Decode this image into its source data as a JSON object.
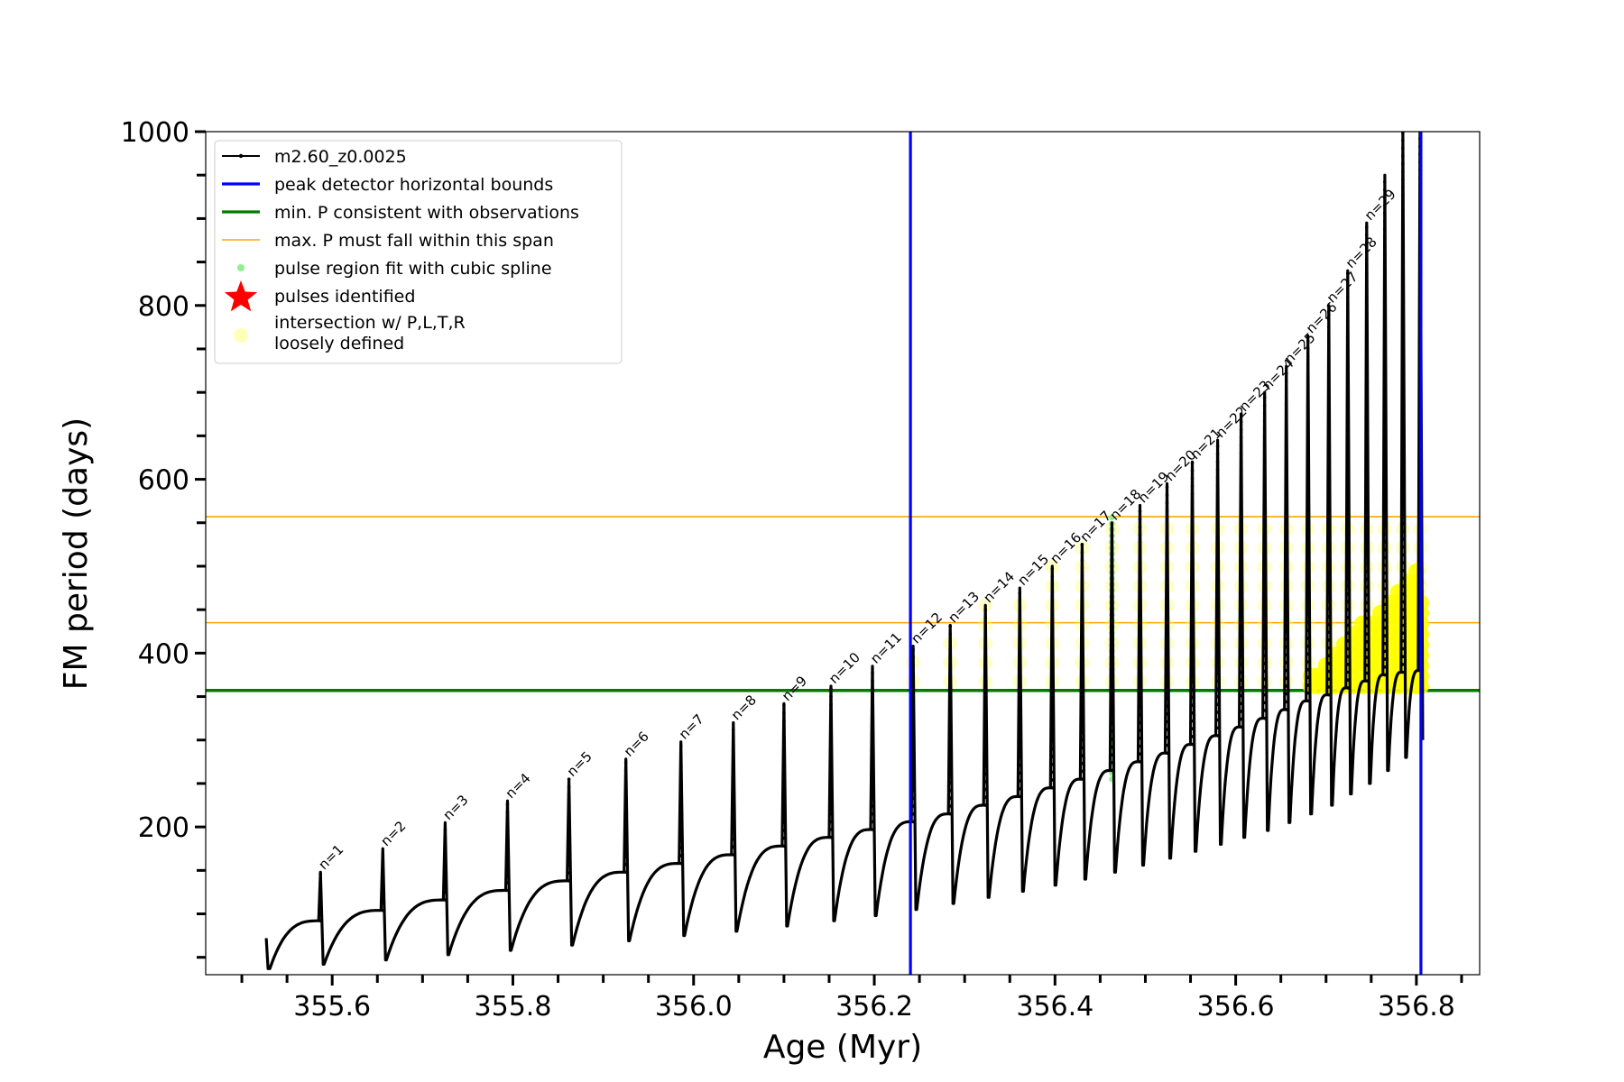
{
  "chart_data": {
    "type": "line",
    "title": "",
    "xlabel": "Age (Myr)",
    "ylabel": "FM period (days)",
    "xlim": [
      355.46,
      356.87
    ],
    "ylim": [
      30,
      1000
    ],
    "x_ticks": [
      355.6,
      355.8,
      356.0,
      356.2,
      356.4,
      356.6,
      356.8
    ],
    "x_tick_labels": [
      "355.6",
      "355.8",
      "356.0",
      "356.2",
      "356.4",
      "356.6",
      "356.8"
    ],
    "y_ticks": [
      200,
      400,
      600,
      800,
      1000
    ],
    "y_tick_labels": [
      "200",
      "400",
      "600",
      "800",
      "1000"
    ],
    "grid": false,
    "legend_position": "top-left",
    "legend": [
      {
        "label": "m2.60_z0.0025",
        "kind": "line-dot",
        "color": "#000000"
      },
      {
        "label": "peak detector horizontal bounds",
        "kind": "line",
        "color": "#0000ff"
      },
      {
        "label": "min. P consistent with observations",
        "kind": "line",
        "color": "#007a00"
      },
      {
        "label": "max. P must fall within this span",
        "kind": "line",
        "color": "#ffa500"
      },
      {
        "label": "pulse region fit with cubic spline",
        "kind": "dot",
        "color": "#90ee90"
      },
      {
        "label": "pulses identified",
        "kind": "star",
        "color": "#ff0000"
      },
      {
        "label": "intersection w/ P,L,T,R",
        "label2": "loosely defined",
        "kind": "circle",
        "color": "#ffff99"
      }
    ],
    "series_name": "m2.60_z0.0025",
    "vertical_lines": [
      356.24,
      356.805
    ],
    "min_period": 357,
    "max_period_span": [
      435,
      557
    ],
    "start": {
      "x": 355.527,
      "y": 72,
      "low": 37
    },
    "pulses": [
      {
        "label": "n=1",
        "x": 355.587,
        "peak": 148,
        "before": 92,
        "low": 42
      },
      {
        "label": "n=2",
        "x": 355.656,
        "peak": 175,
        "before": 104,
        "low": 47
      },
      {
        "label": "n=3",
        "x": 355.725,
        "peak": 205,
        "before": 116,
        "low": 53
      },
      {
        "label": "n=4",
        "x": 355.794,
        "peak": 230,
        "before": 127,
        "low": 58
      },
      {
        "label": "n=5",
        "x": 355.862,
        "peak": 255,
        "before": 138,
        "low": 64
      },
      {
        "label": "n=6",
        "x": 355.925,
        "peak": 278,
        "before": 148,
        "low": 69
      },
      {
        "label": "n=7",
        "x": 355.986,
        "peak": 298,
        "before": 158,
        "low": 75
      },
      {
        "label": "n=8",
        "x": 356.044,
        "peak": 320,
        "before": 168,
        "low": 80
      },
      {
        "label": "n=9",
        "x": 356.1,
        "peak": 342,
        "before": 178,
        "low": 86
      },
      {
        "label": "n=10",
        "x": 356.152,
        "peak": 362,
        "before": 188,
        "low": 92
      },
      {
        "label": "n=11",
        "x": 356.198,
        "peak": 385,
        "before": 197,
        "low": 98
      },
      {
        "label": "n=12",
        "x": 356.243,
        "peak": 408,
        "before": 206,
        "low": 105
      },
      {
        "label": "n=13",
        "x": 356.284,
        "peak": 432,
        "before": 215,
        "low": 112
      },
      {
        "label": "n=14",
        "x": 356.323,
        "peak": 455,
        "before": 225,
        "low": 119
      },
      {
        "label": "n=15",
        "x": 356.361,
        "peak": 475,
        "before": 235,
        "low": 126
      },
      {
        "label": "n=16",
        "x": 356.397,
        "peak": 500,
        "before": 245,
        "low": 133
      },
      {
        "label": "n=17",
        "x": 356.43,
        "peak": 525,
        "before": 255,
        "low": 140
      },
      {
        "label": "n=18",
        "x": 356.463,
        "peak": 550,
        "before": 265,
        "low": 148
      },
      {
        "label": "n=19",
        "x": 356.494,
        "peak": 570,
        "before": 275,
        "low": 156
      },
      {
        "label": "n=20",
        "x": 356.524,
        "peak": 595,
        "before": 285,
        "low": 164
      },
      {
        "label": "n=21",
        "x": 356.552,
        "peak": 620,
        "before": 295,
        "low": 172
      },
      {
        "label": "n=22",
        "x": 356.58,
        "peak": 645,
        "before": 305,
        "low": 180
      },
      {
        "label": "n=23",
        "x": 356.606,
        "peak": 675,
        "before": 315,
        "low": 188
      },
      {
        "label": "n=24",
        "x": 356.632,
        "peak": 700,
        "before": 325,
        "low": 196
      },
      {
        "label": "n=25",
        "x": 356.656,
        "peak": 730,
        "before": 335,
        "low": 205
      },
      {
        "label": "n=26",
        "x": 356.68,
        "peak": 765,
        "before": 345,
        "low": 215
      },
      {
        "label": "n=27",
        "x": 356.703,
        "peak": 800,
        "before": 352,
        "low": 225
      },
      {
        "label": "n=28",
        "x": 356.724,
        "peak": 840,
        "before": 360,
        "low": 238
      },
      {
        "label": "n=29",
        "x": 356.745,
        "peak": 895,
        "before": 368,
        "low": 250
      },
      {
        "label": "",
        "x": 356.765,
        "peak": 950,
        "before": 375,
        "low": 265
      },
      {
        "label": "",
        "x": 356.785,
        "peak": 1000,
        "before": 378,
        "low": 280
      },
      {
        "label": "",
        "x": 356.804,
        "peak": 1000,
        "before": 380,
        "low": 300
      }
    ],
    "cubic_spline_region": {
      "x": 356.463,
      "y_range": [
        255,
        560
      ]
    },
    "yellow_dense": [
      [
        356.683,
        380
      ],
      [
        356.69,
        385
      ],
      [
        356.7,
        395
      ],
      [
        356.71,
        405
      ],
      [
        356.72,
        415
      ],
      [
        356.73,
        425
      ],
      [
        356.74,
        435
      ],
      [
        356.75,
        445
      ],
      [
        356.76,
        455
      ],
      [
        356.77,
        468
      ],
      [
        356.78,
        478
      ],
      [
        356.79,
        490
      ],
      [
        356.8,
        500
      ],
      [
        356.805,
        460
      ]
    ]
  }
}
